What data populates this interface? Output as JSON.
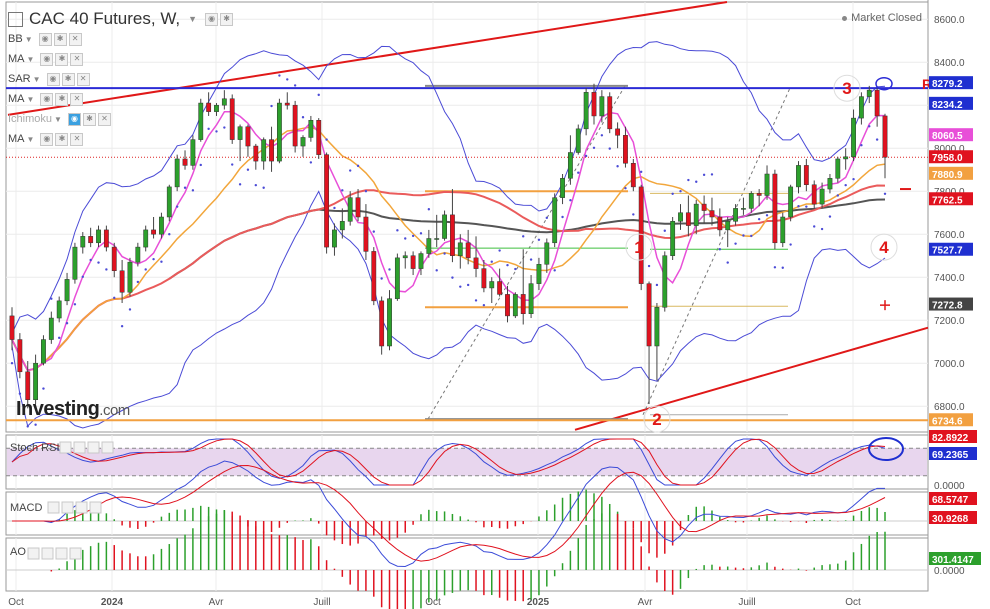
{
  "header": {
    "title": "CAC 40 Futures, W,",
    "market_status": "Market Closed"
  },
  "indicators": [
    "BB",
    "MA",
    "SAR",
    "MA",
    "Ichimoku",
    "MA"
  ],
  "logo": {
    "main": "Investing",
    "suffix": ".com"
  },
  "colors": {
    "up": "#2ca02c",
    "down": "#e0121f",
    "bb": "#4b4bd6",
    "ma_fast": "#e84fd8",
    "ma_mid": "#f2a63b",
    "ma_slow": "#ea5b5b",
    "ma_long": "#555555",
    "sar": "#4b4bd6",
    "pivot": "#2b2bd6",
    "annot": "#e01818"
  },
  "chart_data": {
    "type": "candlestick",
    "title": "CAC 40 Futures, W,",
    "x_labels": [
      "Oct",
      "2024",
      "Avr",
      "Juill",
      "Oct",
      "2025",
      "Avr",
      "Juill",
      "Oct"
    ],
    "y_ticks": [
      6800,
      7000,
      7200,
      7400,
      7600,
      7800,
      8000,
      8200,
      8400,
      8600
    ],
    "y_tick_labels": [
      "6800.0",
      "7000.0",
      "7200.0",
      "7400.0",
      "7600.0",
      "7800.0",
      "8000.0",
      "8200.0",
      "8400.0",
      "8600.0"
    ],
    "ylim": [
      6680,
      8680
    ],
    "candles": [
      [
        7220,
        7260,
        7060,
        7110
      ],
      [
        7110,
        7140,
        6930,
        6960
      ],
      [
        6960,
        7010,
        6790,
        6830
      ],
      [
        6830,
        7040,
        6810,
        7000
      ],
      [
        7000,
        7130,
        6990,
        7110
      ],
      [
        7110,
        7240,
        7090,
        7210
      ],
      [
        7210,
        7310,
        7190,
        7290
      ],
      [
        7290,
        7420,
        7270,
        7390
      ],
      [
        7390,
        7560,
        7370,
        7540
      ],
      [
        7540,
        7610,
        7510,
        7590
      ],
      [
        7590,
        7630,
        7540,
        7560
      ],
      [
        7560,
        7640,
        7540,
        7620
      ],
      [
        7620,
        7640,
        7520,
        7540
      ],
      [
        7540,
        7560,
        7400,
        7430
      ],
      [
        7430,
        7480,
        7280,
        7330
      ],
      [
        7330,
        7490,
        7310,
        7470
      ],
      [
        7470,
        7560,
        7450,
        7540
      ],
      [
        7540,
        7640,
        7520,
        7620
      ],
      [
        7620,
        7680,
        7580,
        7600
      ],
      [
        7600,
        7700,
        7580,
        7680
      ],
      [
        7680,
        7830,
        7660,
        7820
      ],
      [
        7820,
        7970,
        7800,
        7950
      ],
      [
        7950,
        7990,
        7900,
        7920
      ],
      [
        7920,
        8060,
        7900,
        8040
      ],
      [
        8040,
        8230,
        8030,
        8210
      ],
      [
        8210,
        8260,
        8150,
        8170
      ],
      [
        8170,
        8210,
        8150,
        8200
      ],
      [
        8200,
        8270,
        8180,
        8230
      ],
      [
        8230,
        8250,
        8020,
        8040
      ],
      [
        8040,
        8110,
        7940,
        8100
      ],
      [
        8100,
        8110,
        7960,
        8010
      ],
      [
        8010,
        8020,
        7900,
        7940
      ],
      [
        7940,
        8050,
        7900,
        8040
      ],
      [
        8040,
        8100,
        7890,
        7940
      ],
      [
        7940,
        8230,
        7930,
        8210
      ],
      [
        8210,
        8260,
        8180,
        8200
      ],
      [
        8200,
        8220,
        7980,
        8010
      ],
      [
        8010,
        8060,
        7960,
        8050
      ],
      [
        8050,
        8150,
        8030,
        8130
      ],
      [
        8130,
        8140,
        7950,
        7970
      ],
      [
        7970,
        7980,
        7510,
        7540
      ],
      [
        7540,
        7650,
        7500,
        7620
      ],
      [
        7620,
        7720,
        7580,
        7660
      ],
      [
        7660,
        7800,
        7640,
        7770
      ],
      [
        7770,
        7810,
        7660,
        7680
      ],
      [
        7680,
        7740,
        7480,
        7520
      ],
      [
        7520,
        7540,
        7270,
        7290
      ],
      [
        7290,
        7310,
        7040,
        7080
      ],
      [
        7080,
        7340,
        7060,
        7300
      ],
      [
        7300,
        7510,
        7290,
        7490
      ],
      [
        7490,
        7520,
        7440,
        7500
      ],
      [
        7500,
        7520,
        7410,
        7440
      ],
      [
        7440,
        7520,
        7410,
        7510
      ],
      [
        7510,
        7620,
        7490,
        7580
      ],
      [
        7580,
        7690,
        7540,
        7580
      ],
      [
        7580,
        7710,
        7570,
        7690
      ],
      [
        7690,
        7810,
        7470,
        7500
      ],
      [
        7500,
        7600,
        7440,
        7560
      ],
      [
        7560,
        7620,
        7460,
        7490
      ],
      [
        7490,
        7590,
        7400,
        7440
      ],
      [
        7440,
        7480,
        7330,
        7350
      ],
      [
        7350,
        7400,
        7280,
        7380
      ],
      [
        7380,
        7440,
        7310,
        7320
      ],
      [
        7320,
        7360,
        7190,
        7220
      ],
      [
        7220,
        7330,
        7210,
        7320
      ],
      [
        7320,
        7530,
        7180,
        7230
      ],
      [
        7230,
        7410,
        7210,
        7370
      ],
      [
        7370,
        7490,
        7340,
        7460
      ],
      [
        7460,
        7580,
        7420,
        7560
      ],
      [
        7560,
        7790,
        7540,
        7770
      ],
      [
        7770,
        7880,
        7740,
        7860
      ],
      [
        7860,
        8060,
        7830,
        7980
      ],
      [
        7980,
        8110,
        7970,
        8090
      ],
      [
        8090,
        8280,
        8060,
        8260
      ],
      [
        8260,
        8300,
        8110,
        8150
      ],
      [
        8150,
        8270,
        8120,
        8240
      ],
      [
        8240,
        8260,
        8070,
        8090
      ],
      [
        8090,
        8120,
        8000,
        8060
      ],
      [
        8060,
        8100,
        7910,
        7930
      ],
      [
        7930,
        7950,
        7800,
        7820
      ],
      [
        7820,
        7830,
        7340,
        7370
      ],
      [
        7370,
        7380,
        6810,
        7080
      ],
      [
        7080,
        7280,
        6920,
        7260
      ],
      [
        7260,
        7520,
        7240,
        7500
      ],
      [
        7500,
        7680,
        7480,
        7660
      ],
      [
        7660,
        7740,
        7620,
        7700
      ],
      [
        7700,
        7780,
        7590,
        7640
      ],
      [
        7640,
        7760,
        7600,
        7740
      ],
      [
        7740,
        7780,
        7650,
        7710
      ],
      [
        7710,
        7770,
        7640,
        7680
      ],
      [
        7680,
        7720,
        7590,
        7620
      ],
      [
        7620,
        7680,
        7540,
        7660
      ],
      [
        7660,
        7740,
        7640,
        7720
      ],
      [
        7720,
        7770,
        7690,
        7720
      ],
      [
        7720,
        7800,
        7700,
        7790
      ],
      [
        7790,
        7810,
        7730,
        7780
      ],
      [
        7780,
        7920,
        7760,
        7880
      ],
      [
        7880,
        7900,
        7530,
        7560
      ],
      [
        7560,
        7700,
        7540,
        7680
      ],
      [
        7680,
        7830,
        7660,
        7820
      ],
      [
        7820,
        7940,
        7790,
        7920
      ],
      [
        7920,
        7950,
        7800,
        7830
      ],
      [
        7830,
        7850,
        7720,
        7740
      ],
      [
        7740,
        7840,
        7720,
        7810
      ],
      [
        7810,
        7880,
        7790,
        7860
      ],
      [
        7860,
        7960,
        7840,
        7950
      ],
      [
        7950,
        8000,
        7900,
        7960
      ],
      [
        7960,
        8180,
        7940,
        8140
      ],
      [
        8140,
        8260,
        8110,
        8240
      ],
      [
        8240,
        8290,
        8210,
        8270
      ],
      [
        8270,
        8280,
        8100,
        8150
      ],
      [
        8150,
        8160,
        7860,
        7958
      ]
    ],
    "horizontal_lines": [
      {
        "label": "8279.2",
        "value": 8279.2
      },
      {
        "label": "7958.0",
        "value": 7958.0
      },
      {
        "label": "6734.6",
        "value": 6734.6
      }
    ],
    "last_value_labels": [
      "8279.2",
      "8234.2",
      "8060.5",
      "7958.0",
      "7880.9",
      "7762.5",
      "7527.7",
      "7272.8",
      "6734.6"
    ],
    "annotations": [
      "1",
      "2",
      "3",
      "4",
      "R"
    ],
    "stoch_rsi": {
      "label": "Stoch RSI",
      "values": [
        "82.8922",
        "69.2365"
      ],
      "ticks": [
        "0.0000"
      ]
    },
    "macd": {
      "label": "MACD",
      "values": [
        "68.5747",
        "30.9268"
      ]
    },
    "ao": {
      "label": "AO",
      "values": [
        "301.4147"
      ],
      "ticks": [
        "0.0000"
      ]
    }
  }
}
